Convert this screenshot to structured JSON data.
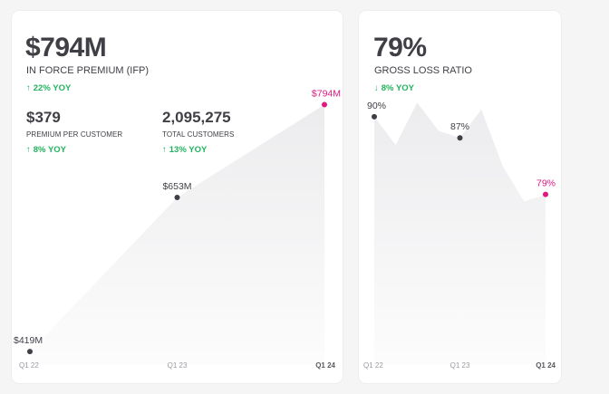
{
  "colors": {
    "text": "#3f3f46",
    "positive": "#22b35e",
    "highlight": "#e0187f",
    "marker": "#3f3f46",
    "area_top": "#ececee"
  },
  "ifp_card": {
    "value": "$794M",
    "label": "IN FORCE PREMIUM (IFP)",
    "yoy": "22% YOY",
    "yoy_arrow": "↑",
    "stats": [
      {
        "value": "$379",
        "label": "PREMIUM PER CUSTOMER",
        "yoy": "8% YOY",
        "yoy_arrow": "↑"
      },
      {
        "value": "2,095,275",
        "label": "TOTAL CUSTOMERS",
        "yoy": "13% YOY",
        "yoy_arrow": "↑"
      }
    ]
  },
  "glr_card": {
    "value": "79%",
    "label": "GROSS LOSS RATIO",
    "yoy": "8% YOY",
    "yoy_arrow": "↓"
  },
  "chart_data": [
    {
      "type": "area",
      "x": [
        0,
        1,
        2
      ],
      "y": [
        419,
        653,
        794
      ],
      "markers": [
        {
          "x": 0,
          "y": 419,
          "label": "$419M",
          "highlight": false
        },
        {
          "x": 1,
          "y": 653,
          "label": "$653M",
          "highlight": false
        },
        {
          "x": 2,
          "y": 794,
          "label": "$794M",
          "highlight": true
        }
      ],
      "x_ticks": [
        "Q1 22",
        "Q1 23",
        "Q1 24"
      ],
      "ylim": [
        400,
        840
      ],
      "grid": false,
      "legend": "none"
    },
    {
      "type": "area",
      "x": [
        0,
        0.25,
        0.5,
        0.75,
        1,
        1.25,
        1.5,
        1.75,
        2
      ],
      "y": [
        90,
        86,
        92,
        88,
        87,
        91,
        83,
        78,
        79
      ],
      "markers": [
        {
          "x": 0,
          "y": 90,
          "label": "90%",
          "highlight": false
        },
        {
          "x": 1,
          "y": 87,
          "label": "87%",
          "highlight": false
        },
        {
          "x": 2,
          "y": 79,
          "label": "79%",
          "highlight": true
        }
      ],
      "x_ticks": [
        "Q1 22",
        "Q1 23",
        "Q1 24"
      ],
      "ylim": [
        55,
        96
      ],
      "grid": false,
      "legend": "none"
    }
  ]
}
